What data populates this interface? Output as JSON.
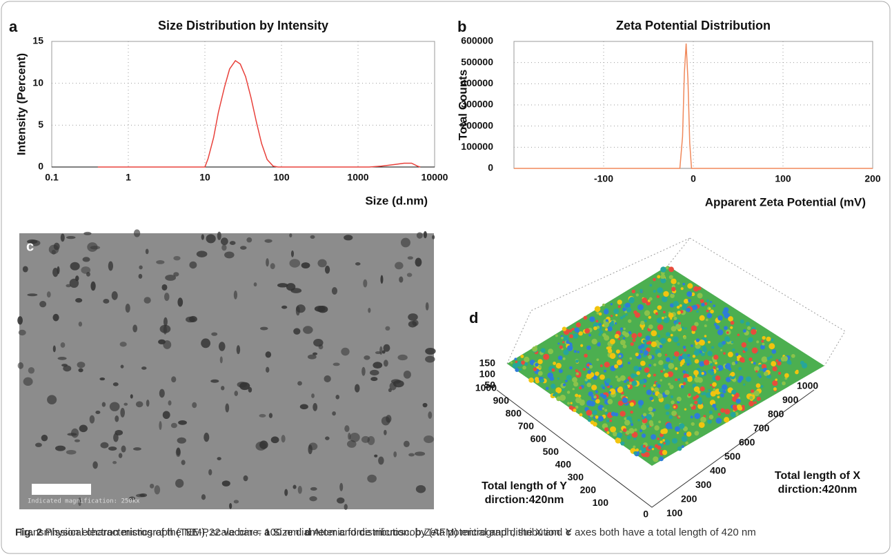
{
  "chart_data": [
    {
      "type": "line",
      "panel": "a",
      "title": "Size Distribution by Intensity",
      "x_label": "Size (d.nm)",
      "y_label": "Intensity (Percent)",
      "xscale": "log",
      "grid": true,
      "color": "#e8403a",
      "x": [
        0.4,
        10,
        11,
        13,
        15,
        18,
        21,
        25,
        29,
        34,
        40,
        47,
        55,
        65,
        78,
        90,
        1400,
        2000,
        3000,
        4000,
        5000,
        6000,
        6500
      ],
      "values": [
        0,
        0,
        1,
        3.5,
        6.5,
        9.5,
        11.7,
        12.7,
        12.3,
        10.8,
        8.3,
        5.4,
        2.8,
        0.9,
        0.1,
        0,
        0,
        0.1,
        0.3,
        0.45,
        0.45,
        0.1,
        0
      ],
      "xlim": [
        0.1,
        10000
      ],
      "xticks": [
        0.1,
        1,
        10,
        100,
        1000,
        10000
      ],
      "ylim": [
        0,
        15
      ],
      "yticks": [
        0,
        5,
        10,
        15
      ]
    },
    {
      "type": "line",
      "panel": "b",
      "title": "Zeta Potential Distribution",
      "x_label": "Apparent Zeta Potential (mV)",
      "y_label": "Total Counts",
      "grid": true,
      "color": "#f0885a",
      "x": [
        -200,
        -15,
        -12,
        -10,
        -8,
        -6,
        -4,
        -2,
        200
      ],
      "values": [
        0,
        0,
        150000,
        450000,
        590000,
        420000,
        120000,
        0,
        0
      ],
      "xlim": [
        -200,
        200
      ],
      "xticks": [
        -100,
        0,
        100,
        200
      ],
      "ylim": [
        0,
        600000
      ],
      "yticks": [
        0,
        100000,
        200000,
        300000,
        400000,
        500000,
        600000
      ]
    }
  ],
  "tem": {
    "panel": "c",
    "note": "Indicated magnification: 250kx"
  },
  "afm": {
    "panel": "d",
    "z_ticks": [
      150,
      100,
      50
    ],
    "y_ticks": [
      1000,
      900,
      800,
      700,
      600,
      500,
      400,
      300,
      200,
      100
    ],
    "x_ticks": [
      0,
      100,
      200,
      300,
      400,
      500,
      600,
      700,
      800,
      900,
      1000
    ],
    "y_label": [
      "Total length of Y",
      "dirction:420nm"
    ],
    "x_label": [
      "Total length of X",
      "dirction:420nm"
    ]
  },
  "caption": [
    {
      "text": "Fig. 2",
      "bold": true
    },
    {
      "text": "  Physical characteristics of the NE-P22 vaccine. "
    },
    {
      "text": "a",
      "bold": true
    },
    {
      "text": " Size diameter and distribution. "
    },
    {
      "text": "b",
      "bold": true
    },
    {
      "text": " Zeta potential and distribution. "
    },
    {
      "text": "c",
      "bold": true
    },
    {
      "text": " Transmission electron micrograph (TEM), scale bar = 100 nm. "
    },
    {
      "text": "d",
      "bold": true
    },
    {
      "text": " Atomic force microscopy (AFM) micrograph, the X and Y axes both have a total length of 420 nm"
    }
  ]
}
